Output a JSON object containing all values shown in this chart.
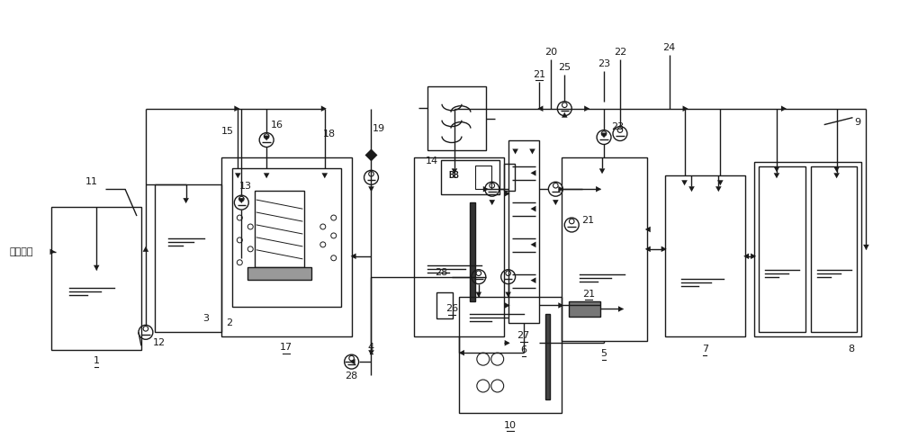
{
  "bg_color": "#ffffff",
  "line_color": "#1a1a1a",
  "figsize": [
    10.0,
    4.98
  ],
  "dpi": 100,
  "labels": {
    "city_water": "城市污水",
    "1": "1",
    "2": "2",
    "3": "3",
    "4": "4",
    "5": "5",
    "6": "6",
    "7": "7",
    "8": "8",
    "9": "9",
    "10": "10",
    "11": "11",
    "12": "12",
    "13": "13",
    "14": "14",
    "15": "15",
    "16": "16",
    "17": "17",
    "18": "18",
    "19": "19",
    "20": "20",
    "21": "21",
    "22": "22",
    "23": "23",
    "24": "24",
    "25": "25",
    "26": "26",
    "27": "27",
    "28": "28"
  }
}
